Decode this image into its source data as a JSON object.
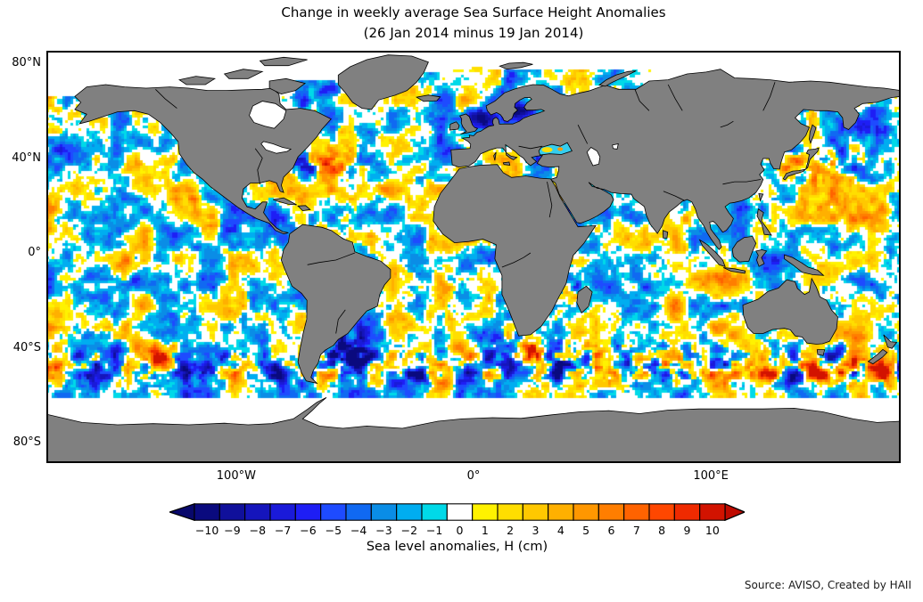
{
  "title": {
    "line1": "Change in weekly average Sea Surface Height Anomalies",
    "line2": "(26 Jan 2014 minus 19 Jan 2014)"
  },
  "map": {
    "land_color": "#808080",
    "coast_color": "#000000",
    "ocean_nodata_color": "#ffffff",
    "border_color": "#000000",
    "y_ticks": [
      {
        "label": "80°N",
        "lat": 80
      },
      {
        "label": "40°N",
        "lat": 40
      },
      {
        "label": "0°",
        "lat": 0
      },
      {
        "label": "40°S",
        "lat": -40
      },
      {
        "label": "80°S",
        "lat": -80
      }
    ],
    "x_ticks": [
      {
        "label": "100°W",
        "lon": -100
      },
      {
        "label": "0°",
        "lon": 0
      },
      {
        "label": "100°E",
        "lon": 100
      }
    ]
  },
  "colorbar": {
    "label": "Sea level anomalies, H (cm)",
    "ticks": [
      "−10",
      "−9",
      "−8",
      "−7",
      "−6",
      "−5",
      "−4",
      "−3",
      "−2",
      "−1",
      "0",
      "1",
      "2",
      "3",
      "4",
      "5",
      "6",
      "7",
      "8",
      "9",
      "10"
    ],
    "tick_values": [
      -10,
      -9,
      -8,
      -7,
      -6,
      -5,
      -4,
      -3,
      -2,
      -1,
      0,
      1,
      2,
      3,
      4,
      5,
      6,
      7,
      8,
      9,
      10
    ],
    "segment_colors": [
      "#0A0A7E",
      "#10109B",
      "#1515BC",
      "#1A1AD9",
      "#1E1EF5",
      "#1E4BFF",
      "#1069F2",
      "#0A8DE6",
      "#00ADF0",
      "#00D9E8",
      "#FFFFFF",
      "#FFF200",
      "#FFDE00",
      "#FFC800",
      "#FFB000",
      "#FF9700",
      "#FF7E00",
      "#FF6300",
      "#FF4700",
      "#EF2A00",
      "#D21300"
    ],
    "arrow_left_color": "#08086B",
    "arrow_right_color": "#BE0A00"
  },
  "source_note": "Source: AVISO, Created by HAII",
  "chart_data": {
    "type": "heatmap",
    "title": "Change in weekly average Sea Surface Height Anomalies",
    "subtitle": "(26 Jan 2014 minus 19 Jan 2014)",
    "projection": "equirectangular world map, longitude 180°W–180°E, latitude ≈85°N–88°S",
    "colorbar_label": "Sea level anomalies, H (cm)",
    "units": "cm",
    "value_range": [
      -10,
      10
    ],
    "colorbar_ticks": [
      -10,
      -9,
      -8,
      -7,
      -6,
      -5,
      -4,
      -3,
      -2,
      -1,
      0,
      1,
      2,
      3,
      4,
      5,
      6,
      7,
      8,
      9,
      10
    ],
    "x_tick_labels": [
      "100°W",
      "0°",
      "100°E"
    ],
    "y_tick_labels": [
      "80°N",
      "40°N",
      "0°",
      "40°S",
      "80°S"
    ],
    "legend_position": "bottom horizontal colorbar with extend arrows on both ends",
    "visible_features": [
      "strong negative anomalies (−6 to −10 cm, dark navy) in the North Sea, Baltic Sea and Norwegian coastal waters",
      "negative patch (−4 to −7 cm) in the central North Pacific near 40°N and in Davis Strait west of Greenland",
      "intense mixed ±10 cm eddy anomalies along the Brazil–Malvinas confluence off Argentina, the Agulhas region south of Africa, western boundary currents (Gulf Stream, Kuroshio) and the Antarctic Circumpolar Current band near 40–55°S",
      "weak anomalies (mostly within ±3 cm, cyan/yellow speckle with white near zero) over most other ocean areas",
      "gray continents; white (no data) polar oceans, Hudson Bay and Caspian Sea; data present in Mediterranean, Black Sea, Red Sea and Persian Gulf"
    ]
  }
}
